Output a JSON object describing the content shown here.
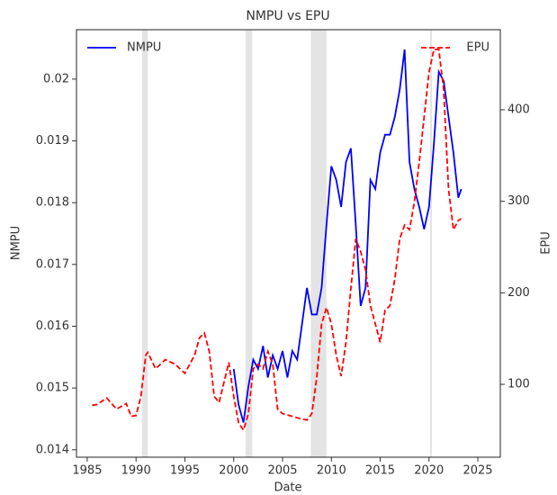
{
  "chart_data": {
    "type": "line",
    "title": "NMPU vs EPU",
    "xlabel": "Date",
    "ylabel": "NMPU",
    "y2label": "EPU",
    "xlim": [
      1983.9,
      2027.3
    ],
    "xticks": [
      1985,
      1990,
      1995,
      2000,
      2005,
      2010,
      2015,
      2020,
      2025
    ],
    "ylim": [
      0.01388,
      0.0208
    ],
    "yticks": [
      0.014,
      0.015,
      0.016,
      0.017,
      0.018,
      0.019,
      0.02
    ],
    "y2lim": [
      20.4,
      487.5
    ],
    "y2ticks": [
      100,
      200,
      300,
      400
    ],
    "shaded_regions": [
      [
        1990.6,
        1991.2
      ],
      [
        2001.2,
        2001.9
      ],
      [
        2007.9,
        2009.5
      ],
      [
        2020.1,
        2020.3
      ]
    ],
    "legend": [
      "upper left",
      "upper right"
    ],
    "series": [
      {
        "name": "NMPU",
        "color": "#0000ff",
        "dash": "solid",
        "axis": "y",
        "x": [
          2000,
          2000.5,
          2001,
          2001.5,
          2002,
          2002.5,
          2003,
          2003.5,
          2004,
          2004.5,
          2005,
          2005.5,
          2006,
          2006.5,
          2007,
          2007.5,
          2008,
          2008.5,
          2009,
          2009.5,
          2010,
          2010.5,
          2011,
          2011.5,
          2012,
          2012.5,
          2013,
          2013.5,
          2014,
          2014.5,
          2015,
          2015.5,
          2016,
          2016.5,
          2017,
          2017.5,
          2018,
          2018.5,
          2019,
          2019.5,
          2020,
          2020.5,
          2021,
          2021.5,
          2022,
          2022.5,
          2023,
          2023.3
        ],
        "values": [
          0.01531,
          0.01473,
          0.01444,
          0.01502,
          0.01546,
          0.01531,
          0.01568,
          0.01517,
          0.01553,
          0.01531,
          0.0156,
          0.01517,
          0.0156,
          0.01546,
          0.01604,
          0.01662,
          0.01619,
          0.01619,
          0.01662,
          0.01764,
          0.01859,
          0.01837,
          0.01793,
          0.01866,
          0.01888,
          0.01764,
          0.01633,
          0.01662,
          0.01837,
          0.01822,
          0.01881,
          0.0191,
          0.0191,
          0.01939,
          0.01983,
          0.02048,
          0.01866,
          0.01822,
          0.01793,
          0.01757,
          0.01793,
          0.01895,
          0.02012,
          0.01997,
          0.01939,
          0.01881,
          0.01808,
          0.01822
        ]
      },
      {
        "name": "EPU",
        "color": "#ff0000",
        "dash": "dashed",
        "axis": "y2",
        "x": [
          1985.5,
          1986,
          1987,
          1988,
          1989,
          1989.5,
          1990,
          1990.5,
          1991,
          1991.2,
          1992,
          1993,
          1994,
          1995,
          1995.5,
          1996,
          1996.5,
          1997,
          1997.5,
          1998,
          1998.5,
          1999,
          1999.5,
          2000,
          2000.5,
          2001,
          2001.5,
          2002,
          2002.5,
          2003,
          2003.5,
          2004,
          2004.5,
          2005,
          2006,
          2007,
          2007.5,
          2008,
          2008.5,
          2009,
          2009.5,
          2010,
          2010.5,
          2011,
          2011.5,
          2012,
          2012.5,
          2013,
          2013.5,
          2014,
          2014.5,
          2015,
          2015.5,
          2016,
          2016.5,
          2017,
          2017.5,
          2018,
          2018.5,
          2019,
          2019.5,
          2020,
          2020.5,
          2021,
          2021.5,
          2022,
          2022.5,
          2023,
          2023.3
        ],
        "values": [
          77,
          78,
          85,
          73,
          79,
          65,
          66,
          87,
          132,
          135,
          117,
          127,
          122,
          112,
          122,
          132,
          151,
          156,
          136,
          87,
          80,
          102,
          124,
          87,
          58,
          50,
          68,
          117,
          122,
          117,
          136,
          122,
          73,
          68,
          65,
          62,
          61,
          68,
          107,
          166,
          184,
          166,
          132,
          109,
          146,
          205,
          259,
          245,
          225,
          186,
          166,
          146,
          181,
          186,
          215,
          259,
          274,
          269,
          299,
          343,
          392,
          441,
          466,
          466,
          422,
          313,
          269,
          279,
          281
        ]
      }
    ]
  }
}
